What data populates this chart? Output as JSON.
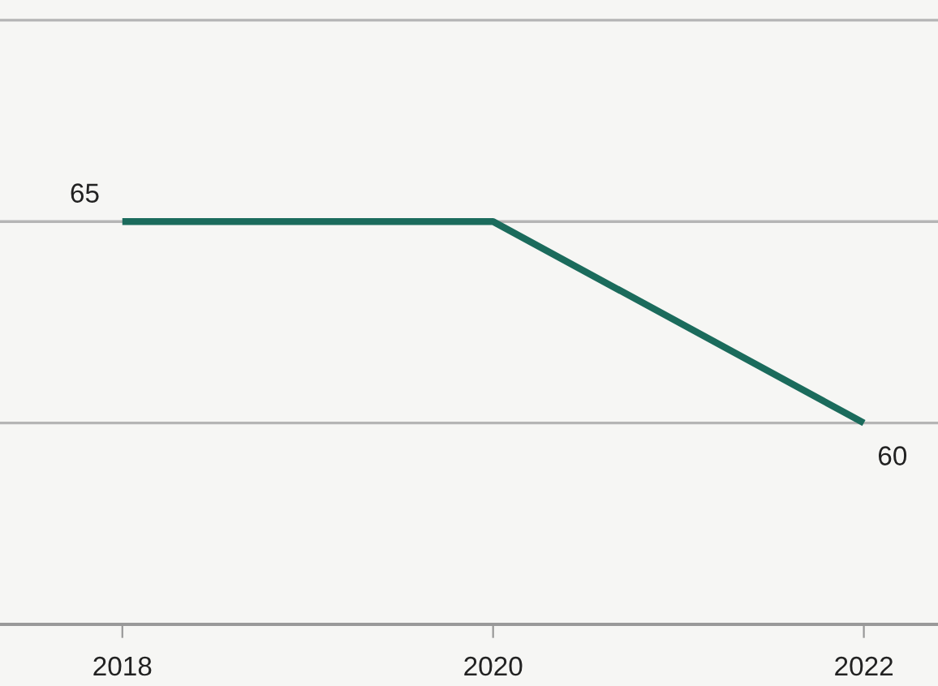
{
  "chart_data": {
    "type": "line",
    "categories": [
      "2018",
      "2020",
      "2022"
    ],
    "series": [
      {
        "color": "#1b6b5c",
        "values": [
          65,
          65,
          60
        ],
        "value_labels": [
          "65",
          null,
          "60"
        ]
      }
    ],
    "ylim": [
      55,
      70.5
    ],
    "yticks": [
      {
        "value": 55,
        "label": null
      },
      {
        "value": 60,
        "label": null
      },
      {
        "value": 65,
        "label": null
      },
      {
        "value": 70,
        "label": null
      }
    ],
    "grid": "y",
    "tick_labels": "x",
    "marker": "none",
    "line_style": "solid"
  }
}
